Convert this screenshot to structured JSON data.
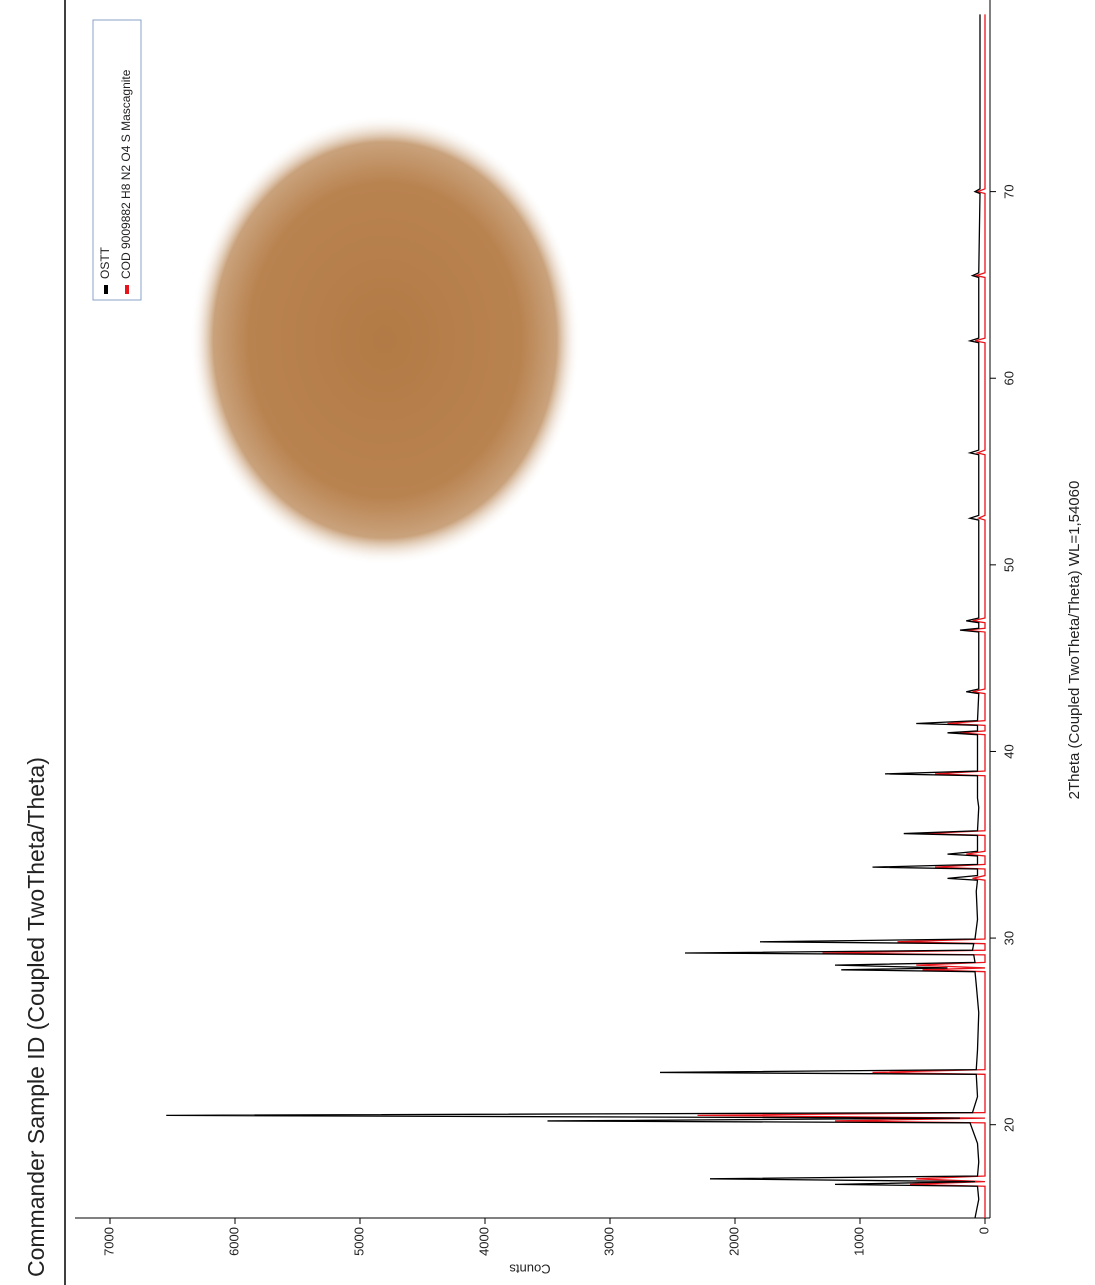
{
  "chart_data": {
    "type": "line",
    "title": "Commander Sample ID (Coupled TwoTheta/Theta)",
    "x_label": "2Theta (Coupled TwoTheta/Theta) WL=1,54060",
    "y_label": "Counts",
    "x": [
      15,
      16,
      16.7,
      16.8,
      16.95,
      17.1,
      17.25,
      18,
      19,
      20.1,
      20.2,
      20.35,
      20.5,
      20.65,
      21.5,
      22.7,
      22.8,
      22.95,
      24,
      26,
      27.5,
      28.2,
      28.3,
      28.4,
      28.55,
      28.7,
      29.1,
      29.2,
      29.35,
      29.7,
      29.8,
      29.95,
      31,
      32.5,
      33.1,
      33.2,
      33.35,
      33.7,
      33.8,
      33.95,
      34.4,
      34.5,
      34.65,
      35.5,
      35.6,
      35.75,
      37,
      37.5,
      38.7,
      38.8,
      38.95,
      40.9,
      41,
      41.1,
      41.4,
      41.5,
      41.65,
      43.1,
      43.2,
      43.35,
      46.4,
      46.5,
      46.6,
      46.9,
      47,
      47.15,
      50,
      52.4,
      52.5,
      52.65,
      55.9,
      56,
      56.15,
      61.9,
      62,
      62.15,
      65.4,
      65.5,
      65.65,
      69.9,
      70,
      70.15,
      75,
      79.5
    ],
    "series": [
      {
        "name": "OSTT",
        "color": "#000000",
        "values": [
          80,
          50,
          60,
          1200,
          80,
          2200,
          60,
          50,
          60,
          120,
          3500,
          200,
          6550,
          100,
          60,
          70,
          2600,
          70,
          60,
          50,
          70,
          80,
          1150,
          300,
          1200,
          80,
          90,
          2400,
          100,
          90,
          1800,
          80,
          60,
          70,
          60,
          300,
          60,
          60,
          900,
          60,
          60,
          300,
          60,
          60,
          650,
          60,
          50,
          60,
          60,
          800,
          60,
          60,
          300,
          60,
          60,
          550,
          60,
          50,
          150,
          50,
          50,
          200,
          50,
          50,
          150,
          50,
          50,
          50,
          120,
          50,
          50,
          120,
          50,
          50,
          120,
          50,
          50,
          100,
          50,
          40,
          80,
          40,
          40,
          40
        ]
      },
      {
        "name": "COD 9009882 H8 N2 O4 S Mascagnite",
        "color": "#e8141b",
        "values": [
          0,
          0,
          0,
          600,
          0,
          550,
          0,
          0,
          0,
          0,
          1200,
          0,
          2300,
          0,
          0,
          0,
          900,
          0,
          0,
          0,
          0,
          0,
          500,
          0,
          550,
          0,
          0,
          1300,
          0,
          0,
          700,
          0,
          0,
          0,
          0,
          100,
          0,
          0,
          400,
          0,
          0,
          150,
          0,
          0,
          500,
          0,
          0,
          0,
          0,
          400,
          0,
          0,
          200,
          0,
          0,
          300,
          0,
          0,
          100,
          0,
          0,
          150,
          0,
          0,
          100,
          0,
          0,
          0,
          50,
          0,
          0,
          60,
          0,
          0,
          80,
          0,
          0,
          70,
          0,
          0,
          60,
          0,
          0,
          0
        ]
      }
    ],
    "xlim": [
      15,
      80
    ],
    "xticks": [
      20,
      30,
      40,
      50,
      60,
      70
    ],
    "ylim": [
      -40,
      7280
    ],
    "yticks": [
      0,
      1000,
      2000,
      3000,
      4000,
      5000,
      6000,
      7000
    ],
    "legend": "top-right"
  }
}
